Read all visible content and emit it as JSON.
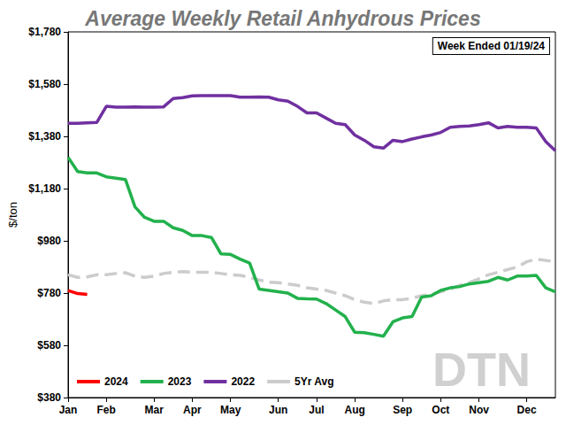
{
  "chart_data": {
    "type": "line",
    "title": "Average Weekly Retail Anhydrous Prices",
    "y_label": "$/ton",
    "annotations": [
      "Week Ended 01/19/24",
      "DTN"
    ],
    "categories": [
      "Jan",
      null,
      null,
      null,
      "Feb",
      null,
      null,
      null,
      null,
      "Mar",
      null,
      null,
      null,
      "Apr",
      null,
      null,
      null,
      "May",
      null,
      null,
      null,
      null,
      "Jun",
      null,
      null,
      null,
      "Jul",
      null,
      null,
      null,
      "Aug",
      null,
      null,
      null,
      null,
      "Sep",
      null,
      null,
      null,
      "Oct",
      null,
      null,
      null,
      "Nov",
      null,
      null,
      null,
      null,
      "Dec",
      null,
      null,
      null
    ],
    "series": [
      {
        "name": "2024",
        "color": "#ff0000",
        "line_style": "solid",
        "values": [
          790,
          778,
          775,
          null,
          null,
          null,
          null,
          null,
          null,
          null,
          null,
          null,
          null,
          null,
          null,
          null,
          null,
          null,
          null,
          null,
          null,
          null,
          null,
          null,
          null,
          null,
          null,
          null,
          null,
          null,
          null,
          null,
          null,
          null,
          null,
          null,
          null,
          null,
          null,
          null,
          null,
          null,
          null,
          null,
          null,
          null,
          null,
          null,
          null,
          null,
          null,
          null
        ]
      },
      {
        "name": "2023",
        "color": "#22b14c",
        "line_style": "solid",
        "values": [
          1300,
          1245,
          1240,
          1240,
          1225,
          1220,
          1215,
          1110,
          1070,
          1055,
          1055,
          1030,
          1020,
          1000,
          1000,
          993,
          930,
          928,
          910,
          895,
          795,
          790,
          785,
          780,
          760,
          758,
          757,
          740,
          715,
          690,
          630,
          628,
          622,
          615,
          670,
          685,
          690,
          765,
          770,
          790,
          800,
          805,
          815,
          820,
          825,
          840,
          830,
          845,
          845,
          848,
          800,
          785
        ]
      },
      {
        "name": "2022",
        "color": "#7030a0",
        "line_style": "solid",
        "values": [
          1430,
          1430,
          1432,
          1433,
          1495,
          1492,
          1492,
          1493,
          1492,
          1492,
          1493,
          1525,
          1528,
          1535,
          1536,
          1536,
          1536,
          1536,
          1530,
          1530,
          1531,
          1530,
          1520,
          1515,
          1495,
          1470,
          1470,
          1450,
          1430,
          1425,
          1385,
          1365,
          1340,
          1335,
          1365,
          1360,
          1370,
          1378,
          1385,
          1395,
          1415,
          1418,
          1420,
          1425,
          1432,
          1412,
          1418,
          1415,
          1415,
          1412,
          1360,
          1325
        ]
      },
      {
        "name": "5Yr Avg",
        "color": "#cccccc",
        "line_style": "dashed",
        "values": [
          850,
          840,
          842,
          850,
          850,
          855,
          858,
          845,
          840,
          845,
          855,
          860,
          862,
          860,
          860,
          860,
          855,
          850,
          848,
          840,
          830,
          822,
          820,
          815,
          810,
          800,
          795,
          790,
          780,
          770,
          755,
          745,
          740,
          750,
          755,
          755,
          760,
          770,
          775,
          785,
          795,
          810,
          820,
          835,
          850,
          860,
          870,
          880,
          900,
          910,
          905,
          900
        ]
      }
    ],
    "ylim": [
      380,
      1780
    ],
    "yticks": [
      {
        "value": 380,
        "label": "$380"
      },
      {
        "value": 580,
        "label": "$580"
      },
      {
        "value": 780,
        "label": "$780"
      },
      {
        "value": 980,
        "label": "$980"
      },
      {
        "value": 1180,
        "label": "$1,180"
      },
      {
        "value": 1380,
        "label": "$1,380"
      },
      {
        "value": 1580,
        "label": "$1,580"
      },
      {
        "value": 1780,
        "label": "$1,780"
      }
    ],
    "grid": false,
    "legend": "lower left"
  }
}
